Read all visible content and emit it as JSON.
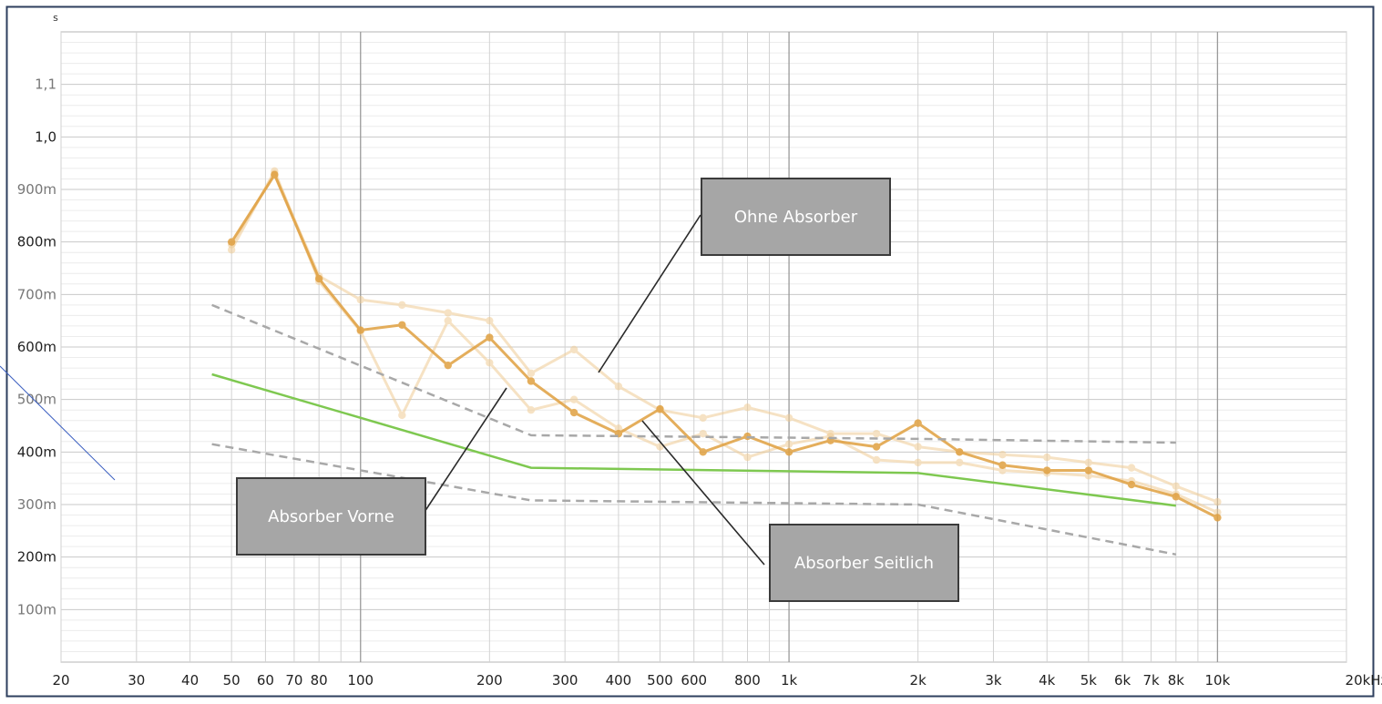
{
  "chart_data": {
    "type": "line",
    "title": "",
    "xlabel": "",
    "ylabel": "s",
    "xscale": "log",
    "xlim": [
      20,
      20000
    ],
    "ylim": [
      0,
      1.2
    ],
    "grid": true,
    "x_ticks": [
      {
        "v": 20,
        "label": "20"
      },
      {
        "v": 30,
        "label": "30"
      },
      {
        "v": 40,
        "label": "40"
      },
      {
        "v": 50,
        "label": "50"
      },
      {
        "v": 60,
        "label": "60"
      },
      {
        "v": 70,
        "label": "70"
      },
      {
        "v": 80,
        "label": "80"
      },
      {
        "v": 100,
        "label": "100"
      },
      {
        "v": 200,
        "label": "200"
      },
      {
        "v": 300,
        "label": "300"
      },
      {
        "v": 400,
        "label": "400"
      },
      {
        "v": 500,
        "label": "500"
      },
      {
        "v": 600,
        "label": "600"
      },
      {
        "v": 800,
        "label": "800"
      },
      {
        "v": 1000,
        "label": "1k"
      },
      {
        "v": 2000,
        "label": "2k"
      },
      {
        "v": 3000,
        "label": "3k"
      },
      {
        "v": 4000,
        "label": "4k"
      },
      {
        "v": 5000,
        "label": "5k"
      },
      {
        "v": 6000,
        "label": "6k"
      },
      {
        "v": 7000,
        "label": "7k"
      },
      {
        "v": 8000,
        "label": "8k"
      },
      {
        "v": 10000,
        "label": "10k"
      },
      {
        "v": 20000,
        "label": "20kHz"
      }
    ],
    "y_ticks": [
      {
        "v": 0.1,
        "label": "100m",
        "weight": "minor"
      },
      {
        "v": 0.2,
        "label": "200m",
        "weight": "major"
      },
      {
        "v": 0.3,
        "label": "300m",
        "weight": "minor"
      },
      {
        "v": 0.4,
        "label": "400m",
        "weight": "major"
      },
      {
        "v": 0.5,
        "label": "500m",
        "weight": "minor"
      },
      {
        "v": 0.6,
        "label": "600m",
        "weight": "major"
      },
      {
        "v": 0.7,
        "label": "700m",
        "weight": "minor"
      },
      {
        "v": 0.8,
        "label": "800m",
        "weight": "major"
      },
      {
        "v": 0.9,
        "label": "900m",
        "weight": "minor"
      },
      {
        "v": 1.0,
        "label": "1,0",
        "weight": "major"
      },
      {
        "v": 1.1,
        "label": "1,1",
        "weight": "minor"
      }
    ],
    "series": [
      {
        "style": "measurement",
        "color": "#f0cc94",
        "opacity": 0.55,
        "x": [
          50,
          63,
          80,
          100,
          125,
          160,
          200,
          250,
          315,
          400,
          500,
          630,
          800,
          1000,
          1250,
          1600,
          2000,
          2500,
          3150,
          4000,
          5000,
          6300,
          8000,
          10000
        ],
        "y": [
          0.795,
          0.93,
          0.735,
          0.69,
          0.68,
          0.665,
          0.65,
          0.55,
          0.595,
          0.525,
          0.48,
          0.465,
          0.485,
          0.465,
          0.435,
          0.435,
          0.41,
          0.4,
          0.395,
          0.39,
          0.38,
          0.37,
          0.335,
          0.305
        ]
      },
      {
        "style": "measurement",
        "color": "#f0cc94",
        "opacity": 0.55,
        "x": [
          50,
          63,
          80,
          100,
          125,
          160,
          200,
          250,
          315,
          400,
          500,
          630,
          800,
          1000,
          1250,
          1600,
          2000,
          2500,
          3150,
          4000,
          5000,
          6300,
          8000,
          10000
        ],
        "y": [
          0.785,
          0.935,
          0.725,
          0.63,
          0.47,
          0.65,
          0.57,
          0.48,
          0.5,
          0.445,
          0.41,
          0.435,
          0.39,
          0.415,
          0.43,
          0.385,
          0.38,
          0.38,
          0.365,
          0.36,
          0.355,
          0.345,
          0.32,
          0.285
        ]
      },
      {
        "style": "measurement",
        "color": "#e0a040",
        "opacity": 0.85,
        "x": [
          50,
          63,
          80,
          100,
          125,
          160,
          200,
          250,
          315,
          400,
          500,
          630,
          800,
          1000,
          1250,
          1600,
          2000,
          2500,
          3150,
          4000,
          5000,
          6300,
          8000,
          10000
        ],
        "y": [
          0.8,
          0.928,
          0.73,
          0.632,
          0.642,
          0.565,
          0.618,
          0.535,
          0.475,
          0.435,
          0.482,
          0.4,
          0.43,
          0.4,
          0.422,
          0.41,
          0.455,
          0.4,
          0.375,
          0.365,
          0.365,
          0.338,
          0.315,
          0.275
        ]
      },
      {
        "style": "target",
        "color": "#7ec850",
        "x": [
          45,
          250,
          2000,
          8000
        ],
        "y": [
          0.548,
          0.37,
          0.36,
          0.298
        ]
      },
      {
        "style": "tolerance",
        "color": "#a8a8a8",
        "x": [
          45,
          250,
          2000,
          8000
        ],
        "y": [
          0.68,
          0.432,
          0.425,
          0.418
        ]
      },
      {
        "style": "tolerance",
        "color": "#a8a8a8",
        "x": [
          45,
          250,
          2000,
          8000
        ],
        "y": [
          0.415,
          0.308,
          0.3,
          0.205
        ]
      }
    ],
    "annotations": [
      {
        "id": "ohne",
        "text": "Ohne Absorber"
      },
      {
        "id": "vorne",
        "text": "Absorber Vorne"
      },
      {
        "id": "seitlich",
        "text": "Absorber Seitlich"
      }
    ]
  }
}
